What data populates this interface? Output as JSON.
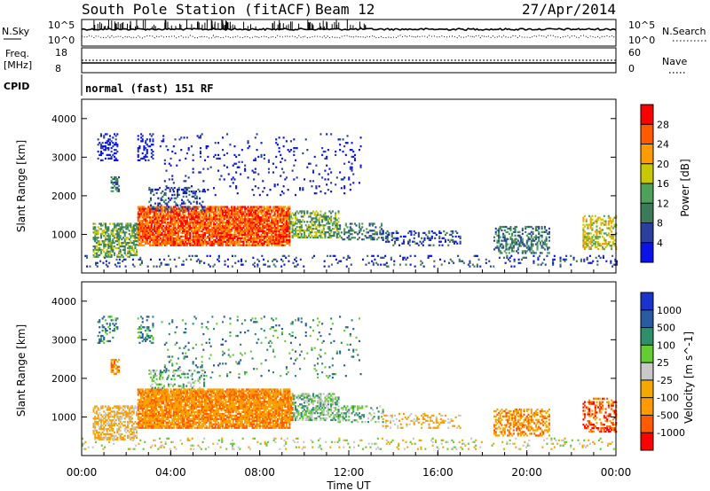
{
  "header": {
    "title": "South Pole Station (fitACF)",
    "beam": "Beam 12",
    "date": "27/Apr/2014"
  },
  "colors": {
    "power_scale": [
      "#0a14e6",
      "#2a3f9e",
      "#3d7a5a",
      "#4ea05a",
      "#c8c800",
      "#ff9a00",
      "#ff5a00",
      "#ff0000"
    ],
    "velocity_scale": [
      "#ff0000",
      "#ff5a00",
      "#ff9a00",
      "#f5a800",
      "#c8c8c8",
      "#66cc33",
      "#2f8f6a",
      "#2a5aa0",
      "#1a33cc"
    ]
  },
  "chart_data": [
    {
      "type": "line",
      "left_label": "N.Sky",
      "right_label": "N.Search",
      "y_ticks_left": [
        "10^5",
        "10^0"
      ],
      "y_ticks_right": [
        "10^5",
        "10^0"
      ],
      "xlim": [
        "00:00",
        "24:00"
      ]
    },
    {
      "type": "line",
      "left_label_1": "Freq.",
      "left_label_2": "[MHz]",
      "right_label": "Nave",
      "y_ticks_left": [
        "18",
        "8"
      ],
      "y_ticks_right": [
        "60",
        "0"
      ],
      "xlim": [
        "00:00",
        "24:00"
      ]
    },
    {
      "type": "table",
      "label": "CPID",
      "program": "normal (fast) 151 RF"
    },
    {
      "type": "heatmap",
      "ylabel": "Slant Range [km]",
      "ylim": [
        0,
        4500
      ],
      "y_ticks": [
        "4000",
        "3000",
        "2000",
        "1000"
      ],
      "colorbar_label": "Power [dB]",
      "colorbar_ticks": [
        "28",
        "24",
        "20",
        "16",
        "12",
        "8",
        "4"
      ],
      "colorbar_range": [
        0,
        32
      ]
    },
    {
      "type": "heatmap",
      "ylabel": "Slant Range [km]",
      "ylim": [
        0,
        4500
      ],
      "y_ticks": [
        "4000",
        "3000",
        "2000",
        "1000"
      ],
      "colorbar_label": "Velocity [m s^-1]",
      "colorbar_ticks": [
        "1000",
        "500",
        "100",
        "25",
        "-25",
        "-100",
        "-500",
        "-1000"
      ],
      "x_ticks": [
        "00:00",
        "04:00",
        "08:00",
        "12:00",
        "16:00",
        "20:00",
        "00:00"
      ],
      "xlabel": "Time UT"
    }
  ]
}
